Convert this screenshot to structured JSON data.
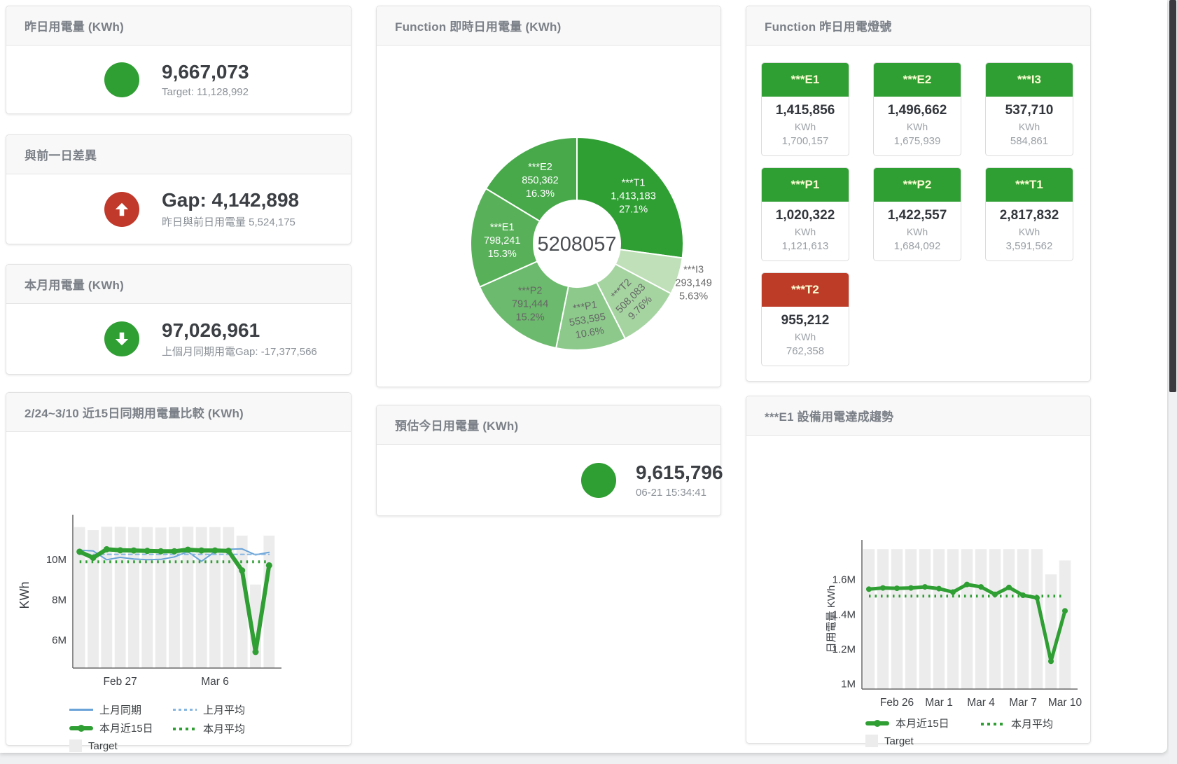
{
  "colors": {
    "green": "#2f9e33",
    "red": "#c0392b",
    "tile_red": "#bd3c28",
    "blue": "#6aa3d8",
    "blue_light": "#85b5e0",
    "target_gray": "#ececec",
    "tile_label": "#fbfdd2"
  },
  "cards": {
    "yesterday": {
      "title": "昨日用電量 (KWh)",
      "value": "9,667,073",
      "subtext": "Target: 11,128,992"
    },
    "prev_day_gap": {
      "title": "與前一日差異",
      "value": "Gap: 4,142,898",
      "subtext": "昨日與前日用電量 5,524,175"
    },
    "month": {
      "title": "本月用電量 (KWh)",
      "value": "97,026,961",
      "subtext": "上個月同期用電Gap: -17,377,566"
    },
    "compare15": {
      "title": "2/24~3/10 近15日同期用電量比較 (KWh)"
    },
    "realtime": {
      "title": "Function 即時日用電量 (KWh)"
    },
    "today_estimate": {
      "title": "預估今日用電量 (KWh)",
      "value": "9,615,796",
      "subtext": "06-21 15:34:41"
    },
    "lights": {
      "title": "Function 昨日用電燈號"
    },
    "e1_trend": {
      "title": "***E1 設備用電達成趨勢"
    }
  },
  "lights_tiles": [
    {
      "label": "***E1",
      "value": "1,415,856",
      "unit": "KWh",
      "target": "1,700,157",
      "status": "green"
    },
    {
      "label": "***E2",
      "value": "1,496,662",
      "unit": "KWh",
      "target": "1,675,939",
      "status": "green"
    },
    {
      "label": "***I3",
      "value": "537,710",
      "unit": "KWh",
      "target": "584,861",
      "status": "green"
    },
    {
      "label": "***P1",
      "value": "1,020,322",
      "unit": "KWh",
      "target": "1,121,613",
      "status": "green"
    },
    {
      "label": "***P2",
      "value": "1,422,557",
      "unit": "KWh",
      "target": "1,684,092",
      "status": "green"
    },
    {
      "label": "***T1",
      "value": "2,817,832",
      "unit": "KWh",
      "target": "3,591,562",
      "status": "green"
    },
    {
      "label": "***T2",
      "value": "955,212",
      "unit": "KWh",
      "target": "762,358",
      "status": "red"
    }
  ],
  "chart_data": [
    {
      "id": "donut",
      "type": "pie",
      "title": "Function 即時日用電量 (KWh)",
      "center_total": "5208057",
      "order": "clockwise-from-top",
      "segments": [
        {
          "name": "***T1",
          "value": 1413183,
          "value_label": "1,413,183",
          "pct_label": "27.1%",
          "color": "#2f9e33",
          "label_pos": "inside",
          "label_color": "#ffffff"
        },
        {
          "name": "***I3",
          "value": 293149,
          "value_label": "293,149",
          "pct_label": "5.63%",
          "color": "#bfe0b8",
          "label_pos": "outside",
          "label_color": "#6b6b6b"
        },
        {
          "name": "***T2",
          "value": 508083,
          "value_label": "508,083",
          "pct_label": "9.76%",
          "color": "#a5d4a1",
          "label_pos": "inside",
          "label_color": "#666666",
          "label_rotate": -45
        },
        {
          "name": "***P1",
          "value": 553595,
          "value_label": "553,595",
          "pct_label": "10.6%",
          "color": "#8cc98b",
          "label_pos": "inside",
          "label_color": "#666666",
          "label_rotate": -10
        },
        {
          "name": "***P2",
          "value": 791444,
          "value_label": "791,444",
          "pct_label": "15.2%",
          "color": "#6cba6d",
          "label_pos": "inside",
          "label_color": "#666666"
        },
        {
          "name": "***E1",
          "value": 798241,
          "value_label": "798,241",
          "pct_label": "15.3%",
          "color": "#58b159",
          "label_pos": "inside",
          "label_color": "#ffffff"
        },
        {
          "name": "***E2",
          "value": 850362,
          "value_label": "850,362",
          "pct_label": "16.3%",
          "color": "#47a94a",
          "label_pos": "inside",
          "label_color": "#ffffff"
        }
      ]
    },
    {
      "id": "compare15",
      "type": "line",
      "title": "2/24~3/10 近15日同期用電量比較 (KWh)",
      "ylabel": "KWh",
      "unit": "millions of KWh",
      "y_range": [
        4.6,
        11.8
      ],
      "y_ticks": [
        {
          "v": 6,
          "label": "6M"
        },
        {
          "v": 8,
          "label": "8M"
        },
        {
          "v": 10,
          "label": "10M"
        }
      ],
      "x_count": 15,
      "x_ticks": [
        {
          "i": 3,
          "label": "Feb 27"
        },
        {
          "i": 10,
          "label": "Mar 6"
        }
      ],
      "target_bars": {
        "name": "Target",
        "color": "#ececec",
        "values": [
          11.6,
          11.45,
          11.62,
          11.62,
          11.6,
          11.6,
          11.58,
          11.6,
          11.62,
          11.6,
          11.6,
          11.6,
          11.18,
          8.75,
          11.18
        ]
      },
      "series": [
        {
          "name": "上月同期",
          "color": "#6aa3d8",
          "width": 2,
          "style": "solid",
          "values": [
            10.45,
            10.42,
            9.98,
            10.1,
            10.02,
            9.98,
            10.0,
            10.12,
            10.38,
            9.9,
            10.38,
            10.5,
            10.52,
            10.22,
            10.35
          ]
        },
        {
          "name": "上月平均",
          "color": "#85b5e0",
          "width": 2,
          "style": "dashed",
          "const_value": 10.25
        },
        {
          "name": "本月平均",
          "color": "#2f9e33",
          "width": 4,
          "style": "dotted",
          "const_value": 9.88
        },
        {
          "name": "本月近15日",
          "color": "#2f9e33",
          "width": 6,
          "style": "solid",
          "markers": true,
          "values": [
            10.38,
            10.08,
            10.5,
            10.45,
            10.44,
            10.42,
            10.4,
            10.4,
            10.48,
            10.44,
            10.44,
            10.42,
            9.45,
            5.4,
            9.7
          ]
        }
      ],
      "legend_rows": [
        [
          {
            "swatch": "line",
            "color": "#6aa3d8",
            "label": "上月同期"
          },
          {
            "swatch": "dash",
            "color": "#85b5e0",
            "label": "上月平均"
          }
        ],
        [
          {
            "swatch": "thick",
            "color": "#2f9e33",
            "label": "本月近15日"
          },
          {
            "swatch": "dots",
            "color": "#2f9e33",
            "label": "本月平均"
          }
        ],
        [
          {
            "swatch": "square",
            "color": "#ececec",
            "label": "Target"
          }
        ]
      ]
    },
    {
      "id": "e1trend",
      "type": "line",
      "title": "***E1 設備用電達成趨勢",
      "ylabel": "日用電量 KWh",
      "unit": "millions of KWh",
      "y_range": [
        0.97,
        1.78
      ],
      "y_ticks": [
        {
          "v": 1,
          "label": "1M"
        },
        {
          "v": 1.2,
          "label": "1.2M"
        },
        {
          "v": 1.4,
          "label": "1.4M"
        },
        {
          "v": 1.6,
          "label": "1.6M"
        }
      ],
      "x_count": 15,
      "x_ticks": [
        {
          "i": 2,
          "label": "Feb 26"
        },
        {
          "i": 5,
          "label": "Mar 1"
        },
        {
          "i": 8,
          "label": "Mar 4"
        },
        {
          "i": 11,
          "label": "Mar 7"
        },
        {
          "i": 14,
          "label": "Mar 10"
        }
      ],
      "target_bars": {
        "name": "Target",
        "color": "#ececec",
        "values": [
          1.775,
          1.775,
          1.775,
          1.775,
          1.775,
          1.775,
          1.775,
          1.775,
          1.775,
          1.775,
          1.775,
          1.775,
          1.775,
          1.63,
          1.71
        ]
      },
      "series": [
        {
          "name": "本月平均",
          "color": "#2f9e33",
          "width": 4,
          "style": "dotted",
          "const_value": 1.505
        },
        {
          "name": "本月近15日",
          "color": "#2f9e33",
          "width": 5,
          "style": "solid",
          "markers": true,
          "values": [
            1.545,
            1.552,
            1.55,
            1.552,
            1.558,
            1.548,
            1.528,
            1.572,
            1.558,
            1.515,
            1.555,
            1.51,
            1.495,
            1.13,
            1.42
          ]
        }
      ],
      "legend_rows": [
        [
          {
            "swatch": "thick",
            "color": "#2f9e33",
            "label": "本月近15日"
          },
          {
            "swatch": "dots",
            "color": "#2f9e33",
            "label": "本月平均"
          }
        ],
        [
          {
            "swatch": "square",
            "color": "#ececec",
            "label": "Target"
          }
        ]
      ]
    }
  ]
}
